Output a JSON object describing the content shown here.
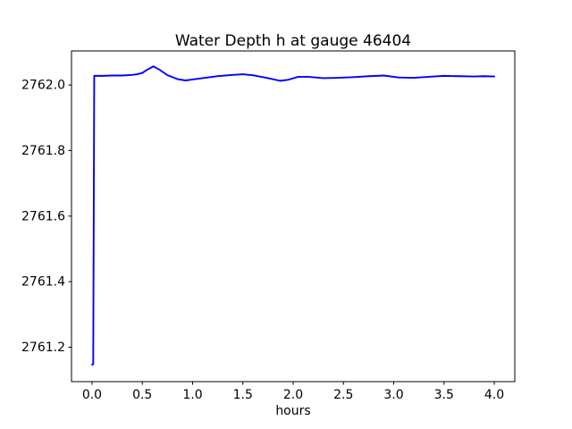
{
  "chart_data": {
    "type": "line",
    "title": "Water Depth h at gauge 46404",
    "xlabel": "hours",
    "ylabel": "",
    "grid": false,
    "legend_position": "none",
    "background_color": "#ffffff",
    "spine_color": "#000000",
    "line_color": "#0000ff",
    "line_width": 1.9,
    "xlim": [
      -0.204,
      4.204
    ],
    "ylim": [
      2761.095,
      2762.104
    ],
    "x_ticks": [
      0.0,
      0.5,
      1.0,
      1.5,
      2.0,
      2.5,
      3.0,
      3.5,
      4.0
    ],
    "x_tick_labels": [
      "0.0",
      "0.5",
      "1.0",
      "1.5",
      "2.0",
      "2.5",
      "3.0",
      "3.5",
      "4.0"
    ],
    "y_ticks": [
      2761.2,
      2761.4,
      2761.6,
      2761.8,
      2762.0
    ],
    "y_tick_labels": [
      "2761.2",
      "2761.4",
      "2761.6",
      "2761.8",
      "2762.0"
    ],
    "series": [
      {
        "name": "water-depth-h",
        "points": [
          [
            0.0,
            2761.147
          ],
          [
            0.012,
            2761.148
          ],
          [
            0.022,
            2762.028
          ],
          [
            0.1,
            2762.028
          ],
          [
            0.2,
            2762.029
          ],
          [
            0.3,
            2762.029
          ],
          [
            0.4,
            2762.031
          ],
          [
            0.45,
            2762.033
          ],
          [
            0.5,
            2762.037
          ],
          [
            0.55,
            2762.047
          ],
          [
            0.61,
            2762.057
          ],
          [
            0.67,
            2762.047
          ],
          [
            0.75,
            2762.03
          ],
          [
            0.85,
            2762.018
          ],
          [
            0.93,
            2762.014
          ],
          [
            1.0,
            2762.017
          ],
          [
            1.1,
            2762.021
          ],
          [
            1.25,
            2762.027
          ],
          [
            1.4,
            2762.031
          ],
          [
            1.5,
            2762.033
          ],
          [
            1.6,
            2762.03
          ],
          [
            1.75,
            2762.021
          ],
          [
            1.87,
            2762.013
          ],
          [
            1.95,
            2762.016
          ],
          [
            2.05,
            2762.025
          ],
          [
            2.15,
            2762.025
          ],
          [
            2.3,
            2762.021
          ],
          [
            2.45,
            2762.022
          ],
          [
            2.6,
            2762.024
          ],
          [
            2.75,
            2762.027
          ],
          [
            2.9,
            2762.029
          ],
          [
            3.05,
            2762.023
          ],
          [
            3.2,
            2762.022
          ],
          [
            3.35,
            2762.025
          ],
          [
            3.5,
            2762.028
          ],
          [
            3.65,
            2762.027
          ],
          [
            3.8,
            2762.026
          ],
          [
            3.9,
            2762.027
          ],
          [
            4.0,
            2762.026
          ]
        ]
      }
    ]
  }
}
